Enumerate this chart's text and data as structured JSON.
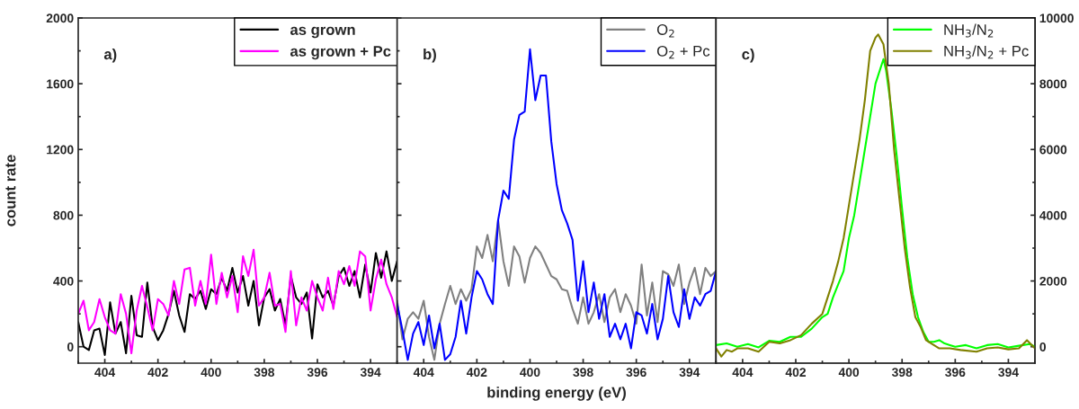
{
  "chart_data": [
    {
      "type": "line",
      "ylabel": "count rate",
      "annotations": [
        "a)"
      ],
      "xlim": [
        405,
        393
      ],
      "xticks": [
        404,
        402,
        400,
        398,
        396,
        394
      ],
      "ylim": [
        -100,
        2000
      ],
      "yticks": [
        0,
        400,
        800,
        1200,
        1600,
        2000
      ],
      "legend": "top right",
      "grid": false,
      "x": [
        405,
        404.8,
        404.6,
        404.4,
        404.2,
        404.0,
        403.8,
        403.6,
        403.4,
        403.2,
        403.0,
        402.8,
        402.6,
        402.4,
        402.2,
        402.0,
        401.8,
        401.6,
        401.4,
        401.2,
        401.0,
        400.8,
        400.6,
        400.4,
        400.2,
        400.0,
        399.8,
        399.6,
        399.4,
        399.2,
        399.0,
        398.8,
        398.6,
        398.4,
        398.2,
        398.0,
        397.8,
        397.6,
        397.4,
        397.2,
        397.0,
        396.8,
        396.6,
        396.4,
        396.2,
        396.0,
        395.8,
        395.6,
        395.4,
        395.2,
        395.0,
        394.8,
        394.6,
        394.4,
        394.2,
        394.0,
        393.8,
        393.6,
        393.4,
        393.2,
        393.0
      ],
      "series": [
        {
          "name": "as grown",
          "color": "#000000",
          "values": [
            150,
            0,
            -20,
            100,
            110,
            -50,
            270,
            80,
            150,
            -40,
            310,
            70,
            60,
            390,
            120,
            40,
            100,
            200,
            340,
            190,
            90,
            320,
            290,
            340,
            230,
            350,
            320,
            420,
            340,
            480,
            330,
            430,
            250,
            400,
            130,
            300,
            350,
            220,
            290,
            130,
            430,
            300,
            260,
            330,
            50,
            380,
            300,
            340,
            250,
            430,
            480,
            370,
            460,
            300,
            500,
            330,
            570,
            420,
            580,
            400,
            520
          ]
        },
        {
          "name": "as grown + Pc",
          "color": "#ff00ff",
          "values": [
            200,
            280,
            100,
            150,
            290,
            180,
            100,
            80,
            320,
            200,
            -40,
            220,
            370,
            240,
            100,
            290,
            260,
            190,
            400,
            260,
            470,
            480,
            250,
            400,
            260,
            560,
            260,
            450,
            300,
            430,
            210,
            550,
            430,
            590,
            250,
            300,
            450,
            250,
            260,
            90,
            460,
            130,
            300,
            220,
            400,
            300,
            220,
            420,
            230,
            460,
            380,
            490,
            370,
            580,
            550,
            220,
            410,
            530,
            380,
            300,
            180
          ]
        }
      ]
    },
    {
      "type": "line",
      "xlabel": "binding energy (eV)",
      "annotations": [
        "b)"
      ],
      "xlim": [
        405,
        393
      ],
      "xticks": [
        404,
        402,
        400,
        398,
        396,
        394
      ],
      "ylim": [
        -100,
        2000
      ],
      "yticks": [
        0,
        400,
        800,
        1200,
        1600,
        2000
      ],
      "tick_labels": "x",
      "legend": "top right",
      "grid": false,
      "x": [
        405,
        404.8,
        404.6,
        404.4,
        404.2,
        404.0,
        403.8,
        403.6,
        403.4,
        403.2,
        403.0,
        402.8,
        402.6,
        402.4,
        402.2,
        402.0,
        401.8,
        401.6,
        401.4,
        401.2,
        401.0,
        400.8,
        400.6,
        400.4,
        400.2,
        400.0,
        399.8,
        399.6,
        399.4,
        399.2,
        399.0,
        398.8,
        398.6,
        398.4,
        398.2,
        398.0,
        397.8,
        397.6,
        397.4,
        397.2,
        397.0,
        396.8,
        396.6,
        396.4,
        396.2,
        396.0,
        395.8,
        395.6,
        395.4,
        395.2,
        395.0,
        394.8,
        394.6,
        394.4,
        394.2,
        394.0,
        393.8,
        393.6,
        393.4,
        393.2,
        393.0
      ],
      "series": [
        {
          "name": "O$_{2}$",
          "color": "#808080",
          "values": [
            280,
            45,
            170,
            210,
            170,
            280,
            60,
            -80,
            140,
            260,
            370,
            260,
            350,
            280,
            350,
            610,
            540,
            680,
            520,
            770,
            520,
            370,
            610,
            550,
            390,
            540,
            610,
            570,
            500,
            430,
            410,
            350,
            340,
            230,
            140,
            300,
            140,
            210,
            320,
            150,
            300,
            350,
            210,
            320,
            250,
            140,
            500,
            190,
            390,
            150,
            460,
            440,
            370,
            500,
            260,
            390,
            480,
            320,
            480,
            430,
            460
          ]
        },
        {
          "name": "O$_{2}$ + Pc",
          "color": "#0000ff",
          "values": [
            260,
            100,
            -80,
            80,
            150,
            10,
            190,
            -10,
            140,
            -80,
            -45,
            60,
            280,
            80,
            300,
            460,
            410,
            320,
            260,
            770,
            950,
            900,
            1260,
            1410,
            1430,
            1810,
            1500,
            1650,
            1650,
            1250,
            990,
            830,
            750,
            650,
            280,
            520,
            210,
            390,
            170,
            320,
            60,
            140,
            45,
            140,
            -10,
            210,
            190,
            80,
            260,
            45,
            170,
            430,
            210,
            120,
            350,
            170,
            300,
            250,
            320,
            340,
            460
          ]
        }
      ]
    },
    {
      "type": "line",
      "annotations": [
        "c)"
      ],
      "xlim": [
        405,
        393
      ],
      "xticks": [
        404,
        402,
        400,
        398,
        396,
        394
      ],
      "y2lim": [
        -500,
        10000
      ],
      "y2ticks": [
        0,
        2000,
        4000,
        6000,
        8000,
        10000
      ],
      "legend": "top right",
      "grid": false,
      "series": [
        {
          "name": "NH$_{3}$/N$_{2}$",
          "color": "#00ff00",
          "axis": "y2",
          "x": [
            405,
            404.6,
            404.2,
            403.8,
            403.4,
            403.0,
            402.6,
            402.2,
            401.8,
            401.4,
            401.0,
            400.8,
            400.6,
            400.4,
            400.2,
            400.0,
            399.8,
            399.6,
            399.4,
            399.2,
            399.0,
            398.8,
            398.7,
            398.6,
            398.4,
            398.2,
            398.0,
            397.8,
            397.6,
            397.4,
            397.2,
            397.0,
            396.8,
            396.6,
            396.4,
            396.2,
            396.0,
            395.6,
            395.2,
            394.8,
            394.4,
            394.0,
            393.6,
            393.2,
            393.0
          ],
          "values": [
            50,
            100,
            0,
            80,
            -20,
            180,
            150,
            300,
            300,
            550,
            900,
            1000,
            1500,
            1900,
            2300,
            3300,
            4000,
            5000,
            6000,
            7000,
            8000,
            8500,
            8750,
            8400,
            7200,
            5800,
            4200,
            2700,
            1600,
            900,
            450,
            150,
            150,
            200,
            100,
            50,
            0,
            50,
            -50,
            50,
            80,
            -20,
            30,
            80,
            0
          ]
        },
        {
          "name": "NH$_{3}$/N$_{2}$ + Pc",
          "color": "#808000",
          "axis": "y2",
          "x": [
            405,
            404.8,
            404.6,
            404.4,
            404.2,
            403.8,
            403.4,
            403.0,
            402.6,
            402.2,
            401.8,
            401.4,
            401.0,
            400.8,
            400.6,
            400.4,
            400.2,
            400.0,
            399.8,
            399.6,
            399.4,
            399.2,
            399.0,
            398.9,
            398.7,
            398.5,
            398.3,
            398.1,
            397.9,
            397.7,
            397.5,
            397.3,
            397.1,
            396.9,
            396.6,
            396.2,
            395.8,
            395.2,
            394.8,
            394.4,
            394.0,
            393.6,
            393.3,
            393.0
          ],
          "values": [
            -50,
            -300,
            -100,
            -150,
            -50,
            -50,
            -150,
            150,
            100,
            200,
            350,
            700,
            1000,
            1500,
            2000,
            2600,
            3300,
            4300,
            5300,
            6300,
            7500,
            9000,
            9400,
            9500,
            9200,
            8000,
            6000,
            4500,
            3000,
            1800,
            900,
            600,
            200,
            100,
            -50,
            -50,
            -100,
            -150,
            -50,
            -20,
            -80,
            -50,
            200,
            -50
          ]
        }
      ]
    }
  ]
}
